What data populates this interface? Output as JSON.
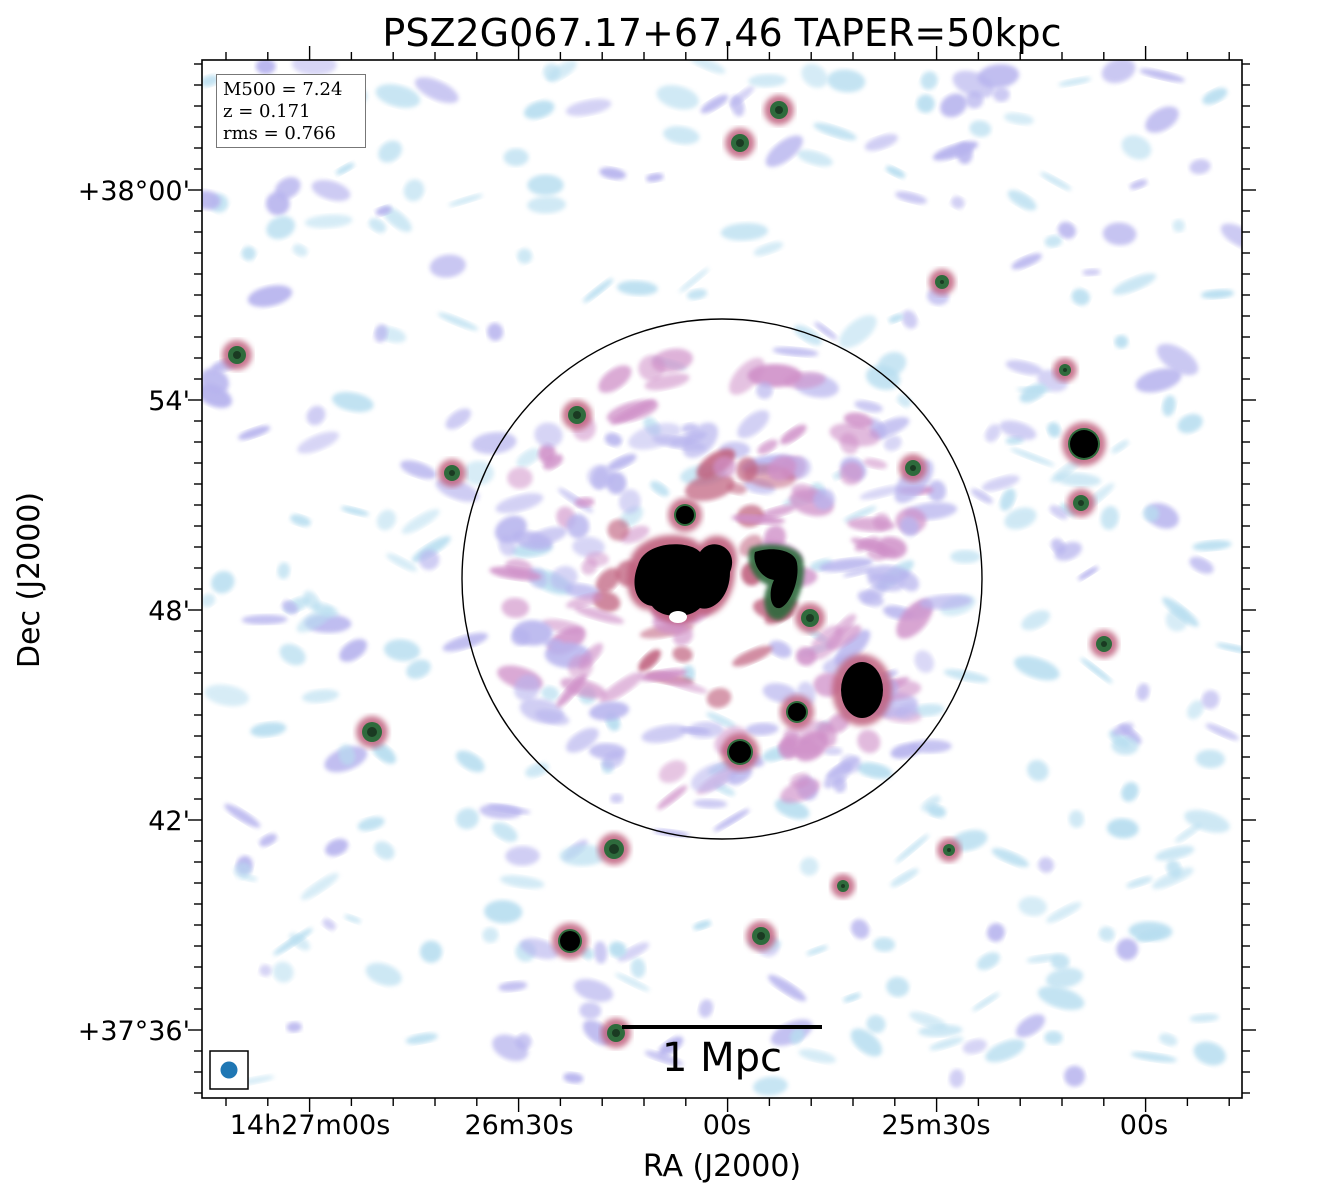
{
  "title": "PSZ2G067.17+67.46 TAPER=50kpc",
  "info_box": {
    "m500": "M500 = 7.24",
    "z": "z = 0.171",
    "rms": "rms = 0.766"
  },
  "scale_bar_label": "1 Mpc",
  "axes": {
    "xlabel": "RA (J2000)",
    "ylabel": "Dec (J2000)",
    "x_ticks": [
      "14h27m00s",
      "26m30s",
      "00s",
      "25m30s",
      "00s"
    ],
    "y_ticks": [
      "+38°00'",
      "54'",
      "48'",
      "42'",
      "+37°36'"
    ]
  },
  "colors": {
    "faint_emission": "#b8def0",
    "low_emission": "#b7b4ee",
    "mid_emission": "#cf8fc8",
    "high_emission": "#c0607e",
    "peak_ring": "#2e6b3c",
    "saturated": "#000000",
    "beam": "#1f77b4"
  }
}
